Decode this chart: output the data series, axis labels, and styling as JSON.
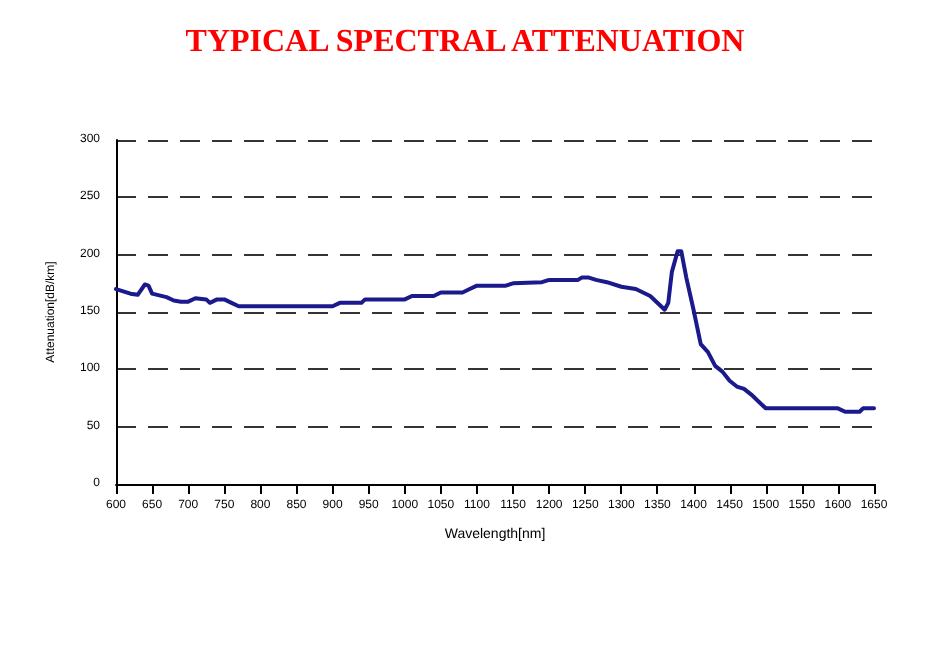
{
  "chart_data": {
    "type": "line",
    "title": "TYPICAL SPECTRAL ATTENUATION",
    "xlabel": "Wavelength[nm]",
    "ylabel": "Attenuation[dB/km]",
    "x": [
      600,
      610,
      620,
      630,
      640,
      645,
      650,
      670,
      680,
      690,
      700,
      710,
      725,
      730,
      740,
      750,
      760,
      770,
      800,
      900,
      910,
      940,
      945,
      1000,
      1010,
      1040,
      1050,
      1080,
      1090,
      1100,
      1140,
      1150,
      1190,
      1200,
      1240,
      1245,
      1255,
      1265,
      1280,
      1300,
      1320,
      1340,
      1355,
      1360,
      1365,
      1370,
      1378,
      1383,
      1390,
      1400,
      1410,
      1420,
      1430,
      1440,
      1450,
      1460,
      1470,
      1480,
      1490,
      1500,
      1600,
      1610,
      1630,
      1635,
      1650
    ],
    "series": [
      {
        "color": "#1a1a8c",
        "values": [
          170,
          168,
          166,
          165,
          174,
          173,
          166,
          163,
          160,
          159,
          159,
          162,
          161,
          158,
          161,
          161,
          158,
          155,
          155,
          155,
          158,
          158,
          161,
          161,
          164,
          164,
          167,
          167,
          170,
          173,
          173,
          175,
          176,
          178,
          178,
          180,
          180,
          178,
          176,
          172,
          170,
          164,
          155,
          152,
          158,
          185,
          203,
          203,
          180,
          152,
          122,
          115,
          103,
          98,
          90,
          85,
          83,
          78,
          72,
          66,
          66,
          63,
          63,
          66,
          66
        ]
      }
    ],
    "xlim": [
      600,
      1650
    ],
    "xticks": [
      600,
      650,
      700,
      750,
      800,
      850,
      900,
      950,
      1000,
      1050,
      1100,
      1150,
      1200,
      1250,
      1300,
      1350,
      1400,
      1450,
      1500,
      1550,
      1600,
      1650
    ],
    "ylim": [
      0,
      300
    ],
    "yticks": [
      0,
      50,
      100,
      150,
      200,
      250,
      300
    ],
    "grid": "y",
    "marker": "none",
    "line_style": "solid"
  }
}
